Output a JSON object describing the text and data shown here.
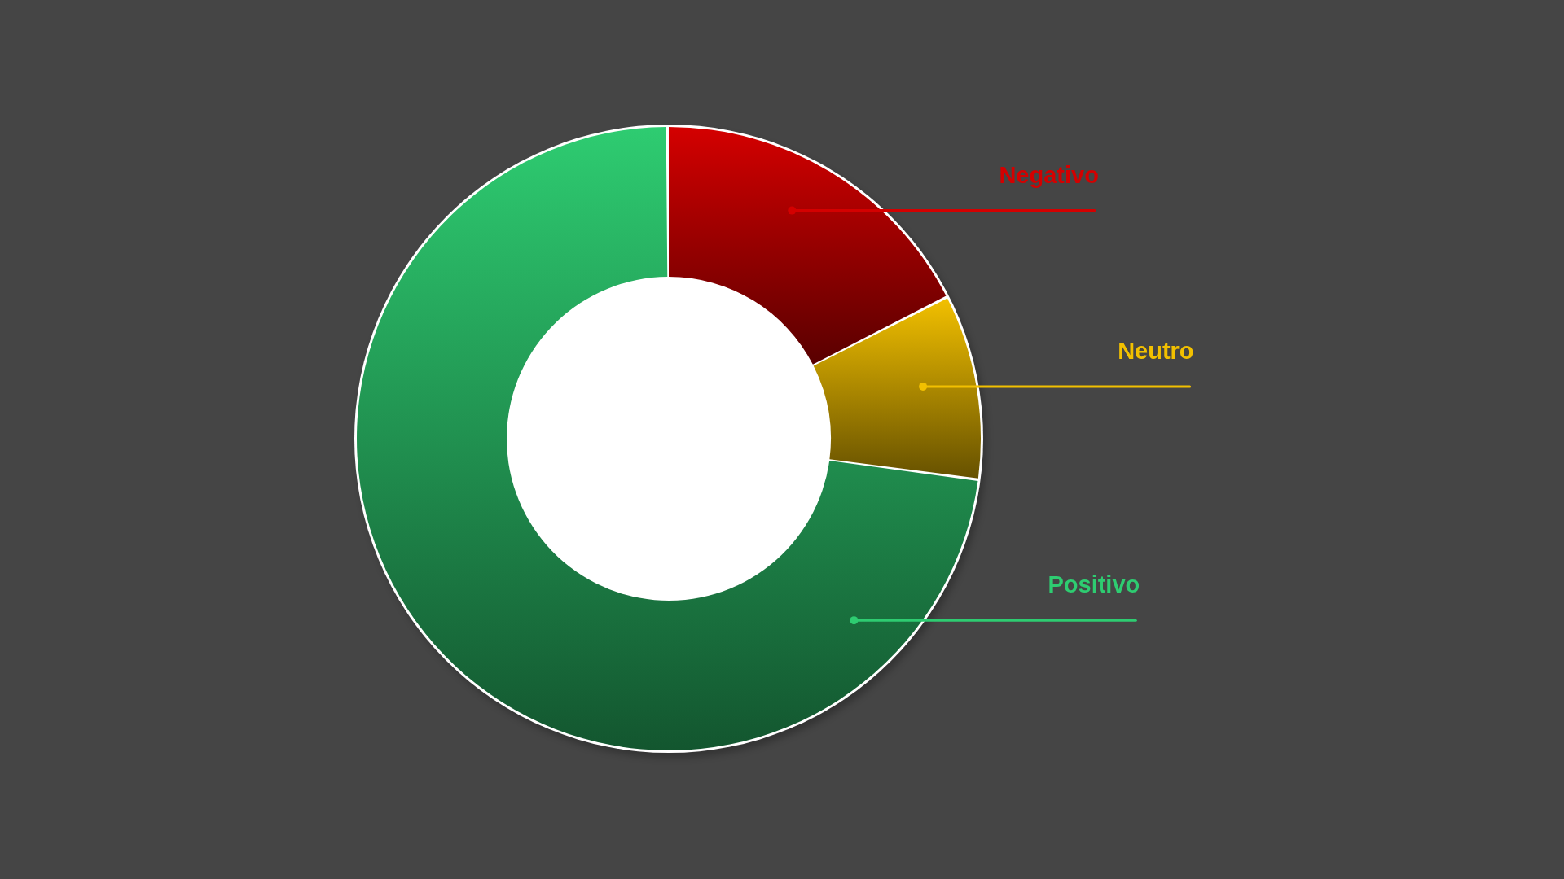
{
  "chart_data": {
    "type": "donut",
    "categories": [
      "Negativo",
      "Neutro",
      "Positivo"
    ],
    "values": [
      17.5,
      9.5,
      73
    ],
    "colors": [
      "#d40000",
      "#f2c000",
      "#2ecc71"
    ]
  }
}
